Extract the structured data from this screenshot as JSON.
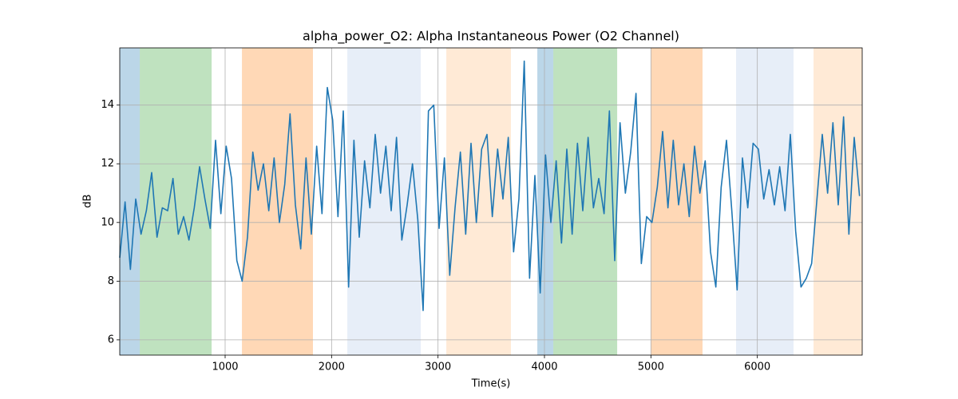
{
  "chart_data": {
    "type": "line",
    "title": "alpha_power_O2: Alpha Instantaneous Power (O2 Channel)",
    "xlabel": "Time(s)",
    "ylabel": "dB",
    "xlim": [
      10,
      6985
    ],
    "ylim": [
      5.48,
      15.95
    ],
    "xticks": [
      1000,
      2000,
      3000,
      4000,
      5000,
      6000
    ],
    "yticks": [
      6,
      8,
      10,
      12,
      14
    ],
    "grid": true,
    "span_opacity": 0.3,
    "spans": [
      {
        "start": 10,
        "end": 198,
        "color": "#1f77b4"
      },
      {
        "start": 198,
        "end": 873,
        "color": "#2ca02c"
      },
      {
        "start": 1158,
        "end": 1825,
        "color": "#ff7f0e"
      },
      {
        "start": 2148,
        "end": 2838,
        "color": "#aec7e8"
      },
      {
        "start": 3078,
        "end": 3685,
        "color": "#ffbb78"
      },
      {
        "start": 3933,
        "end": 4083,
        "color": "#1f77b4"
      },
      {
        "start": 4083,
        "end": 4683,
        "color": "#2ca02c"
      },
      {
        "start": 4998,
        "end": 5485,
        "color": "#ff7f0e"
      },
      {
        "start": 5800,
        "end": 6340,
        "color": "#aec7e8"
      },
      {
        "start": 6528,
        "end": 6985,
        "color": "#ffbb78"
      }
    ],
    "x": [
      10,
      60,
      110,
      160,
      210,
      260,
      310,
      360,
      410,
      460,
      510,
      560,
      610,
      660,
      710,
      760,
      810,
      860,
      910,
      960,
      1010,
      1060,
      1110,
      1160,
      1210,
      1260,
      1310,
      1360,
      1410,
      1460,
      1510,
      1560,
      1610,
      1660,
      1710,
      1760,
      1810,
      1860,
      1910,
      1960,
      2010,
      2060,
      2110,
      2160,
      2210,
      2260,
      2310,
      2360,
      2410,
      2460,
      2510,
      2560,
      2610,
      2660,
      2710,
      2760,
      2810,
      2860,
      2910,
      2960,
      3010,
      3060,
      3110,
      3160,
      3210,
      3260,
      3310,
      3360,
      3410,
      3460,
      3510,
      3560,
      3610,
      3660,
      3710,
      3760,
      3810,
      3860,
      3910,
      3960,
      4010,
      4060,
      4110,
      4160,
      4210,
      4260,
      4310,
      4360,
      4410,
      4460,
      4510,
      4560,
      4610,
      4660,
      4710,
      4760,
      4810,
      4860,
      4910,
      4960,
      5010,
      5060,
      5110,
      5160,
      5210,
      5260,
      5310,
      5360,
      5410,
      5460,
      5510,
      5560,
      5610,
      5660,
      5710,
      5760,
      5810,
      5860,
      5910,
      5960,
      6010,
      6060,
      6110,
      6160,
      6210,
      6260,
      6310,
      6360,
      6410,
      6460,
      6510,
      6560,
      6610,
      6660,
      6710,
      6760,
      6810,
      6860,
      6910,
      6960
    ],
    "series": [
      {
        "name": "alpha_power_O2",
        "color": "#1f77b4",
        "values": [
          8.8,
          10.7,
          8.4,
          10.8,
          9.6,
          10.4,
          11.7,
          9.5,
          10.5,
          10.4,
          11.5,
          9.6,
          10.2,
          9.4,
          10.5,
          11.9,
          10.8,
          9.8,
          12.8,
          10.3,
          12.6,
          11.5,
          8.7,
          8.0,
          9.5,
          12.4,
          11.1,
          12.0,
          10.4,
          12.2,
          10.0,
          11.3,
          13.7,
          10.6,
          9.1,
          12.2,
          9.6,
          12.6,
          10.3,
          14.6,
          13.5,
          10.2,
          13.8,
          7.8,
          12.8,
          9.5,
          12.1,
          10.5,
          13.0,
          11.0,
          12.6,
          10.4,
          12.9,
          9.4,
          10.6,
          12.0,
          10.1,
          7.0,
          13.8,
          14.0,
          9.8,
          12.2,
          8.2,
          10.5,
          12.4,
          9.6,
          12.7,
          10.0,
          12.5,
          13.0,
          10.2,
          12.5,
          10.8,
          12.9,
          9.0,
          10.8,
          15.5,
          8.1,
          11.6,
          7.6,
          12.3,
          10.0,
          12.1,
          9.3,
          12.5,
          9.6,
          12.7,
          10.4,
          12.9,
          10.5,
          11.5,
          10.3,
          13.8,
          8.7,
          13.4,
          11.0,
          12.4,
          14.4,
          8.6,
          10.2,
          10.0,
          11.2,
          13.1,
          10.5,
          12.8,
          10.6,
          12.0,
          10.2,
          12.6,
          11.0,
          12.1,
          9.0,
          7.8,
          11.2,
          12.8,
          10.4,
          7.7,
          12.2,
          10.5,
          12.7,
          12.5,
          10.8,
          11.8,
          10.6,
          11.9,
          10.4,
          13.0,
          9.7,
          7.8,
          8.1,
          8.6,
          10.8,
          13.0,
          11.0,
          13.4,
          10.6,
          13.6,
          9.6,
          12.9,
          10.9
        ]
      }
    ]
  }
}
